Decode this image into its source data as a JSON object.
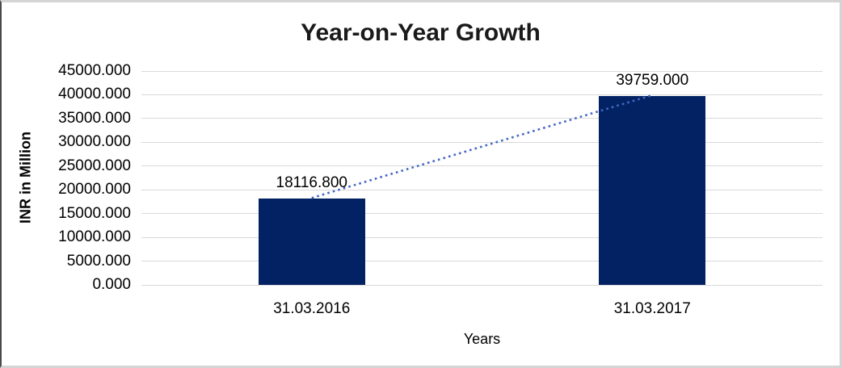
{
  "chart_data": {
    "type": "bar",
    "title": "Year-on-Year Growth",
    "xlabel": "Years",
    "ylabel": "INR in Million",
    "categories": [
      "31.03.2016",
      "31.03.2017"
    ],
    "series": [
      {
        "name": "INR in Million",
        "values": [
          18116.8,
          39759.0
        ]
      }
    ],
    "data_labels": [
      "18116.800",
      "39759.000"
    ],
    "ylim": [
      0,
      45000
    ],
    "ytick_step": 5000,
    "ytick_decimals": 3,
    "grid": true,
    "legend_position": "none",
    "trendline": {
      "type": "linear",
      "style": "dotted",
      "color": "#4467c4"
    },
    "colors": {
      "bar": "#032264",
      "gridline": "#d9d9d9",
      "text": "#000000"
    }
  }
}
